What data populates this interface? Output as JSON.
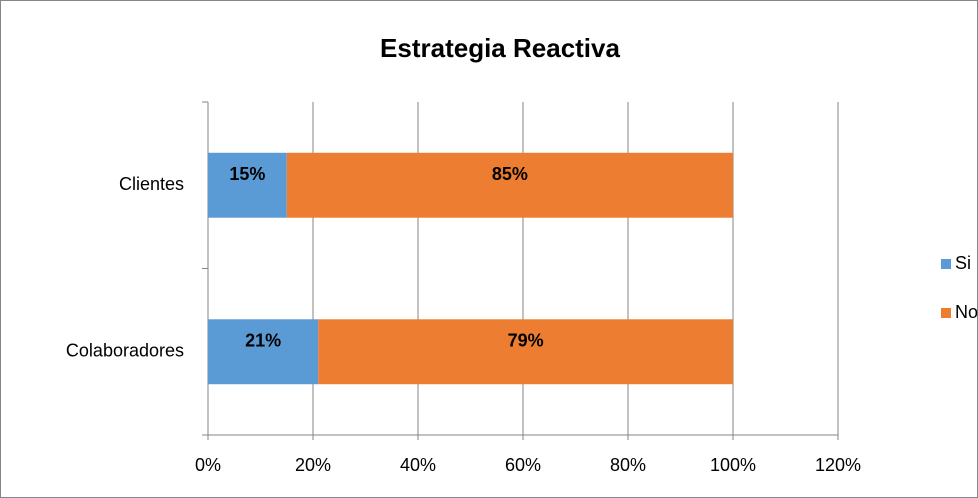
{
  "chart_data": {
    "type": "stacked_barh",
    "title": "Estrategia Reactiva",
    "categories": [
      "Clientes",
      "Colaboradores"
    ],
    "series": [
      {
        "name": "Si",
        "color": "#5b9bd5",
        "values": [
          15,
          21
        ],
        "value_labels": [
          "15%",
          "21%"
        ]
      },
      {
        "name": "No",
        "color": "#ed7d31",
        "values": [
          85,
          79
        ],
        "value_labels": [
          "85%",
          "79%"
        ]
      }
    ],
    "xlim": [
      0,
      120
    ],
    "xticks": [
      {
        "value": 0,
        "label": "0%"
      },
      {
        "value": 20,
        "label": "20%"
      },
      {
        "value": 40,
        "label": "40%"
      },
      {
        "value": 60,
        "label": "60%"
      },
      {
        "value": 80,
        "label": "80%"
      },
      {
        "value": 100,
        "label": "100%"
      },
      {
        "value": 120,
        "label": "120%"
      }
    ],
    "grid": true,
    "legend": "right"
  }
}
